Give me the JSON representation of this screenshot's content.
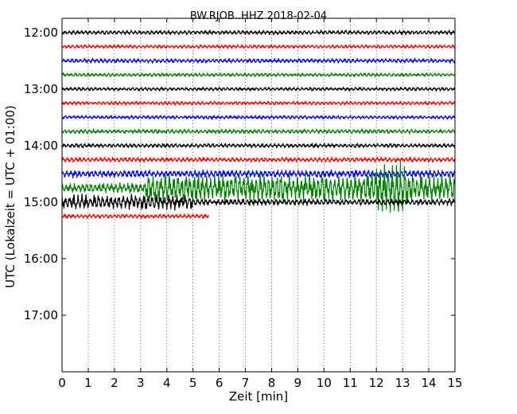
{
  "chart_data": {
    "type": "line",
    "title": "BW.RJOB..HHZ 2018-02-04",
    "xlabel": "Zeit  [min]",
    "ylabel": "UTC (Lokalzeit = UTC + 01:00)",
    "xlim": [
      0,
      15
    ],
    "xticks": [
      "0",
      "1",
      "2",
      "3",
      "4",
      "5",
      "6",
      "7",
      "8",
      "9",
      "10",
      "11",
      "12",
      "13",
      "14",
      "15"
    ],
    "yticks": [
      {
        "label": "12:00",
        "hour": 12.0
      },
      {
        "label": "13:00",
        "hour": 13.0
      },
      {
        "label": "14:00",
        "hour": 14.0
      },
      {
        "label": "15:00",
        "hour": 15.0
      },
      {
        "label": "16:00",
        "hour": 16.0
      },
      {
        "label": "17:00",
        "hour": 17.0
      }
    ],
    "ylim_hours": [
      11.75,
      18.0
    ],
    "grid": "vertical dotted at each minute",
    "colors": [
      "#000000",
      "#ff0000",
      "#0000ff",
      "#008000"
    ],
    "traces": [
      {
        "start": "12:00",
        "color": "#000000",
        "end_min": 15,
        "amplitude": 0.35
      },
      {
        "start": "12:15",
        "color": "#ff0000",
        "end_min": 15,
        "amplitude": 0.3
      },
      {
        "start": "12:30",
        "color": "#0000ff",
        "end_min": 15,
        "amplitude": 0.35
      },
      {
        "start": "12:45",
        "color": "#008000",
        "end_min": 15,
        "amplitude": 0.3
      },
      {
        "start": "13:00",
        "color": "#000000",
        "end_min": 15,
        "amplitude": 0.3
      },
      {
        "start": "13:15",
        "color": "#ff0000",
        "end_min": 15,
        "amplitude": 0.3
      },
      {
        "start": "13:30",
        "color": "#0000ff",
        "end_min": 15,
        "amplitude": 0.3
      },
      {
        "start": "13:45",
        "color": "#008000",
        "end_min": 15,
        "amplitude": 0.35
      },
      {
        "start": "14:00",
        "color": "#000000",
        "end_min": 15,
        "amplitude": 0.35
      },
      {
        "start": "14:15",
        "color": "#ff0000",
        "end_min": 15,
        "amplitude": 0.4
      },
      {
        "start": "14:30",
        "color": "#0000ff",
        "end_min": 15,
        "amplitude": 0.6
      },
      {
        "start": "14:45",
        "color": "#008000",
        "end_min": 15,
        "amplitude": 2.2
      },
      {
        "start": "15:00",
        "color": "#000000",
        "end_min": 15,
        "amplitude": 1.2
      },
      {
        "start": "15:15",
        "color": "#ff0000",
        "end_min": 5.6,
        "amplitude": 0.35
      }
    ]
  }
}
